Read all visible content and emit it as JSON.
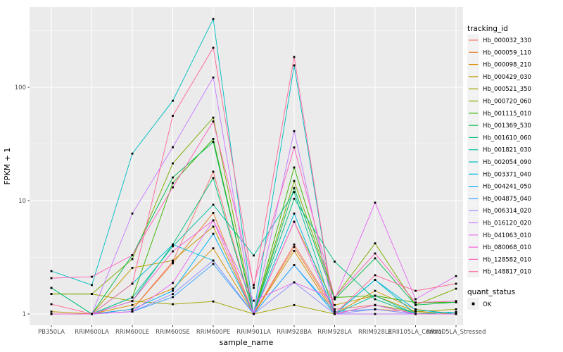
{
  "chart_data": {
    "type": "line",
    "title": "",
    "xlabel": "sample_name",
    "ylabel": "FPKM + 1",
    "y_scale": "log10",
    "ylim": [
      0.9,
      500
    ],
    "y_tick_labels": [
      "1",
      "10",
      "100"
    ],
    "y_tick_values": [
      1,
      10,
      100
    ],
    "grid": "on",
    "panel_bg": "#EBEBEB",
    "grid_color": "#FFFFFF",
    "point_color": "#000000",
    "legend_position": "right",
    "legend": {
      "series_title": "tracking_id",
      "shape_title": "quant_status",
      "shape_label": "OK"
    },
    "categories": [
      "PB350LA",
      "RRIM600LA",
      "RRIM600LE",
      "RRIM600SE",
      "RRIM600PE",
      "RRIM901LA",
      "RRIM928BA",
      "RRIM928LA",
      "RRIM928LE",
      "RRII105LA_Control",
      "RRII105LA_Stressed"
    ],
    "series": [
      {
        "name": "Hb_000032_330",
        "color": "#F8766D",
        "values": [
          1.0,
          1.0,
          1.1,
          2.9,
          18.0,
          1.0,
          4.1,
          1.1,
          1.2,
          1.0,
          1.0
        ]
      },
      {
        "name": "Hb_000059_110",
        "color": "#EA8331",
        "values": [
          1.0,
          1.0,
          1.1,
          2.8,
          7.8,
          1.0,
          3.9,
          1.05,
          1.1,
          1.05,
          1.0
        ]
      },
      {
        "name": "Hb_000098_210",
        "color": "#D89000",
        "values": [
          1.0,
          1.0,
          1.2,
          1.67,
          3.8,
          1.0,
          3.6,
          1.0,
          1.6,
          1.1,
          1.0
        ]
      },
      {
        "name": "Hb_000429_030",
        "color": "#C09B00",
        "values": [
          1.05,
          1.0,
          2.55,
          2.96,
          5.9,
          1.0,
          6.5,
          1.2,
          1.45,
          1.05,
          1.0
        ]
      },
      {
        "name": "Hb_000521_350",
        "color": "#A3A500",
        "values": [
          1.5,
          1.5,
          1.3,
          1.22,
          1.29,
          1.0,
          1.2,
          1.0,
          1.2,
          1.05,
          1.1
        ]
      },
      {
        "name": "Hb_000720_060",
        "color": "#7CAE00",
        "values": [
          1.5,
          1.5,
          3.05,
          21.3,
          54.0,
          1.0,
          14.9,
          1.4,
          4.2,
          1.2,
          1.67
        ]
      },
      {
        "name": "Hb_001115_010",
        "color": "#39B600",
        "values": [
          1.0,
          1.0,
          1.4,
          14.3,
          35.0,
          1.0,
          19.6,
          1.4,
          1.45,
          1.26,
          1.27
        ]
      },
      {
        "name": "Hb_001369_530",
        "color": "#00BB4E",
        "values": [
          1.7,
          1.0,
          3.3,
          16.0,
          33.0,
          1.0,
          12.9,
          1.35,
          3.1,
          1.2,
          1.27
        ]
      },
      {
        "name": "Hb_001610_060",
        "color": "#00BF7D",
        "values": [
          1.7,
          1.0,
          1.3,
          4.1,
          15.8,
          1.0,
          10.4,
          2.9,
          1.35,
          1.0,
          1.04
        ]
      },
      {
        "name": "Hb_001821_030",
        "color": "#00C1A3",
        "values": [
          1.0,
          1.0,
          1.4,
          3.95,
          9.2,
          3.28,
          11.9,
          1.0,
          1.45,
          1.0,
          1.04
        ]
      },
      {
        "name": "Hb_002054_090",
        "color": "#00BFC4",
        "values": [
          2.39,
          1.8,
          26.0,
          76.0,
          400.0,
          1.0,
          156.0,
          1.0,
          2.0,
          1.0,
          1.0
        ]
      },
      {
        "name": "Hb_003371_040",
        "color": "#00BAE0",
        "values": [
          1.0,
          1.0,
          1.85,
          4.1,
          2.96,
          1.0,
          7.7,
          1.0,
          2.0,
          1.09,
          1.0
        ]
      },
      {
        "name": "Hb_004241_050",
        "color": "#00B0F6",
        "values": [
          1.0,
          1.0,
          1.1,
          1.6,
          5.1,
          1.0,
          2.7,
          1.0,
          1.2,
          1.0,
          1.0
        ]
      },
      {
        "name": "Hb_004875_040",
        "color": "#35A2FF",
        "values": [
          1.0,
          1.0,
          1.05,
          1.41,
          2.76,
          1.0,
          2.7,
          1.05,
          1.1,
          1.0,
          1.0
        ]
      },
      {
        "name": "Hb_006314_020",
        "color": "#9590FF",
        "values": [
          1.0,
          1.0,
          1.05,
          1.5,
          2.96,
          1.0,
          1.9,
          1.0,
          1.1,
          1.0,
          1.0
        ]
      },
      {
        "name": "Hb_016120_020",
        "color": "#C77CFF",
        "values": [
          1.0,
          1.0,
          7.7,
          29.6,
          122.0,
          1.0,
          41.0,
          1.0,
          1.0,
          1.0,
          1.0
        ]
      },
      {
        "name": "Hb_041063_010",
        "color": "#E76BF3",
        "values": [
          1.0,
          1.0,
          1.05,
          1.88,
          6.7,
          1.31,
          1.9,
          1.35,
          9.6,
          1.35,
          2.16
        ]
      },
      {
        "name": "Hb_080068_010",
        "color": "#FA62DB",
        "values": [
          1.0,
          1.0,
          1.3,
          3.57,
          6.7,
          1.0,
          6.5,
          1.0,
          1.2,
          1.0,
          1.0
        ]
      },
      {
        "name": "Hb_128582_010",
        "color": "#FF62BC",
        "values": [
          2.07,
          2.13,
          3.3,
          13.1,
          50.0,
          1.8,
          29.5,
          1.4,
          3.42,
          1.26,
          1.3
        ]
      },
      {
        "name": "Hb_148817_010",
        "color": "#FF6A98",
        "values": [
          1.22,
          1.0,
          1.85,
          56.0,
          223.0,
          1.7,
          185.0,
          1.0,
          2.2,
          1.6,
          1.85
        ]
      }
    ]
  }
}
